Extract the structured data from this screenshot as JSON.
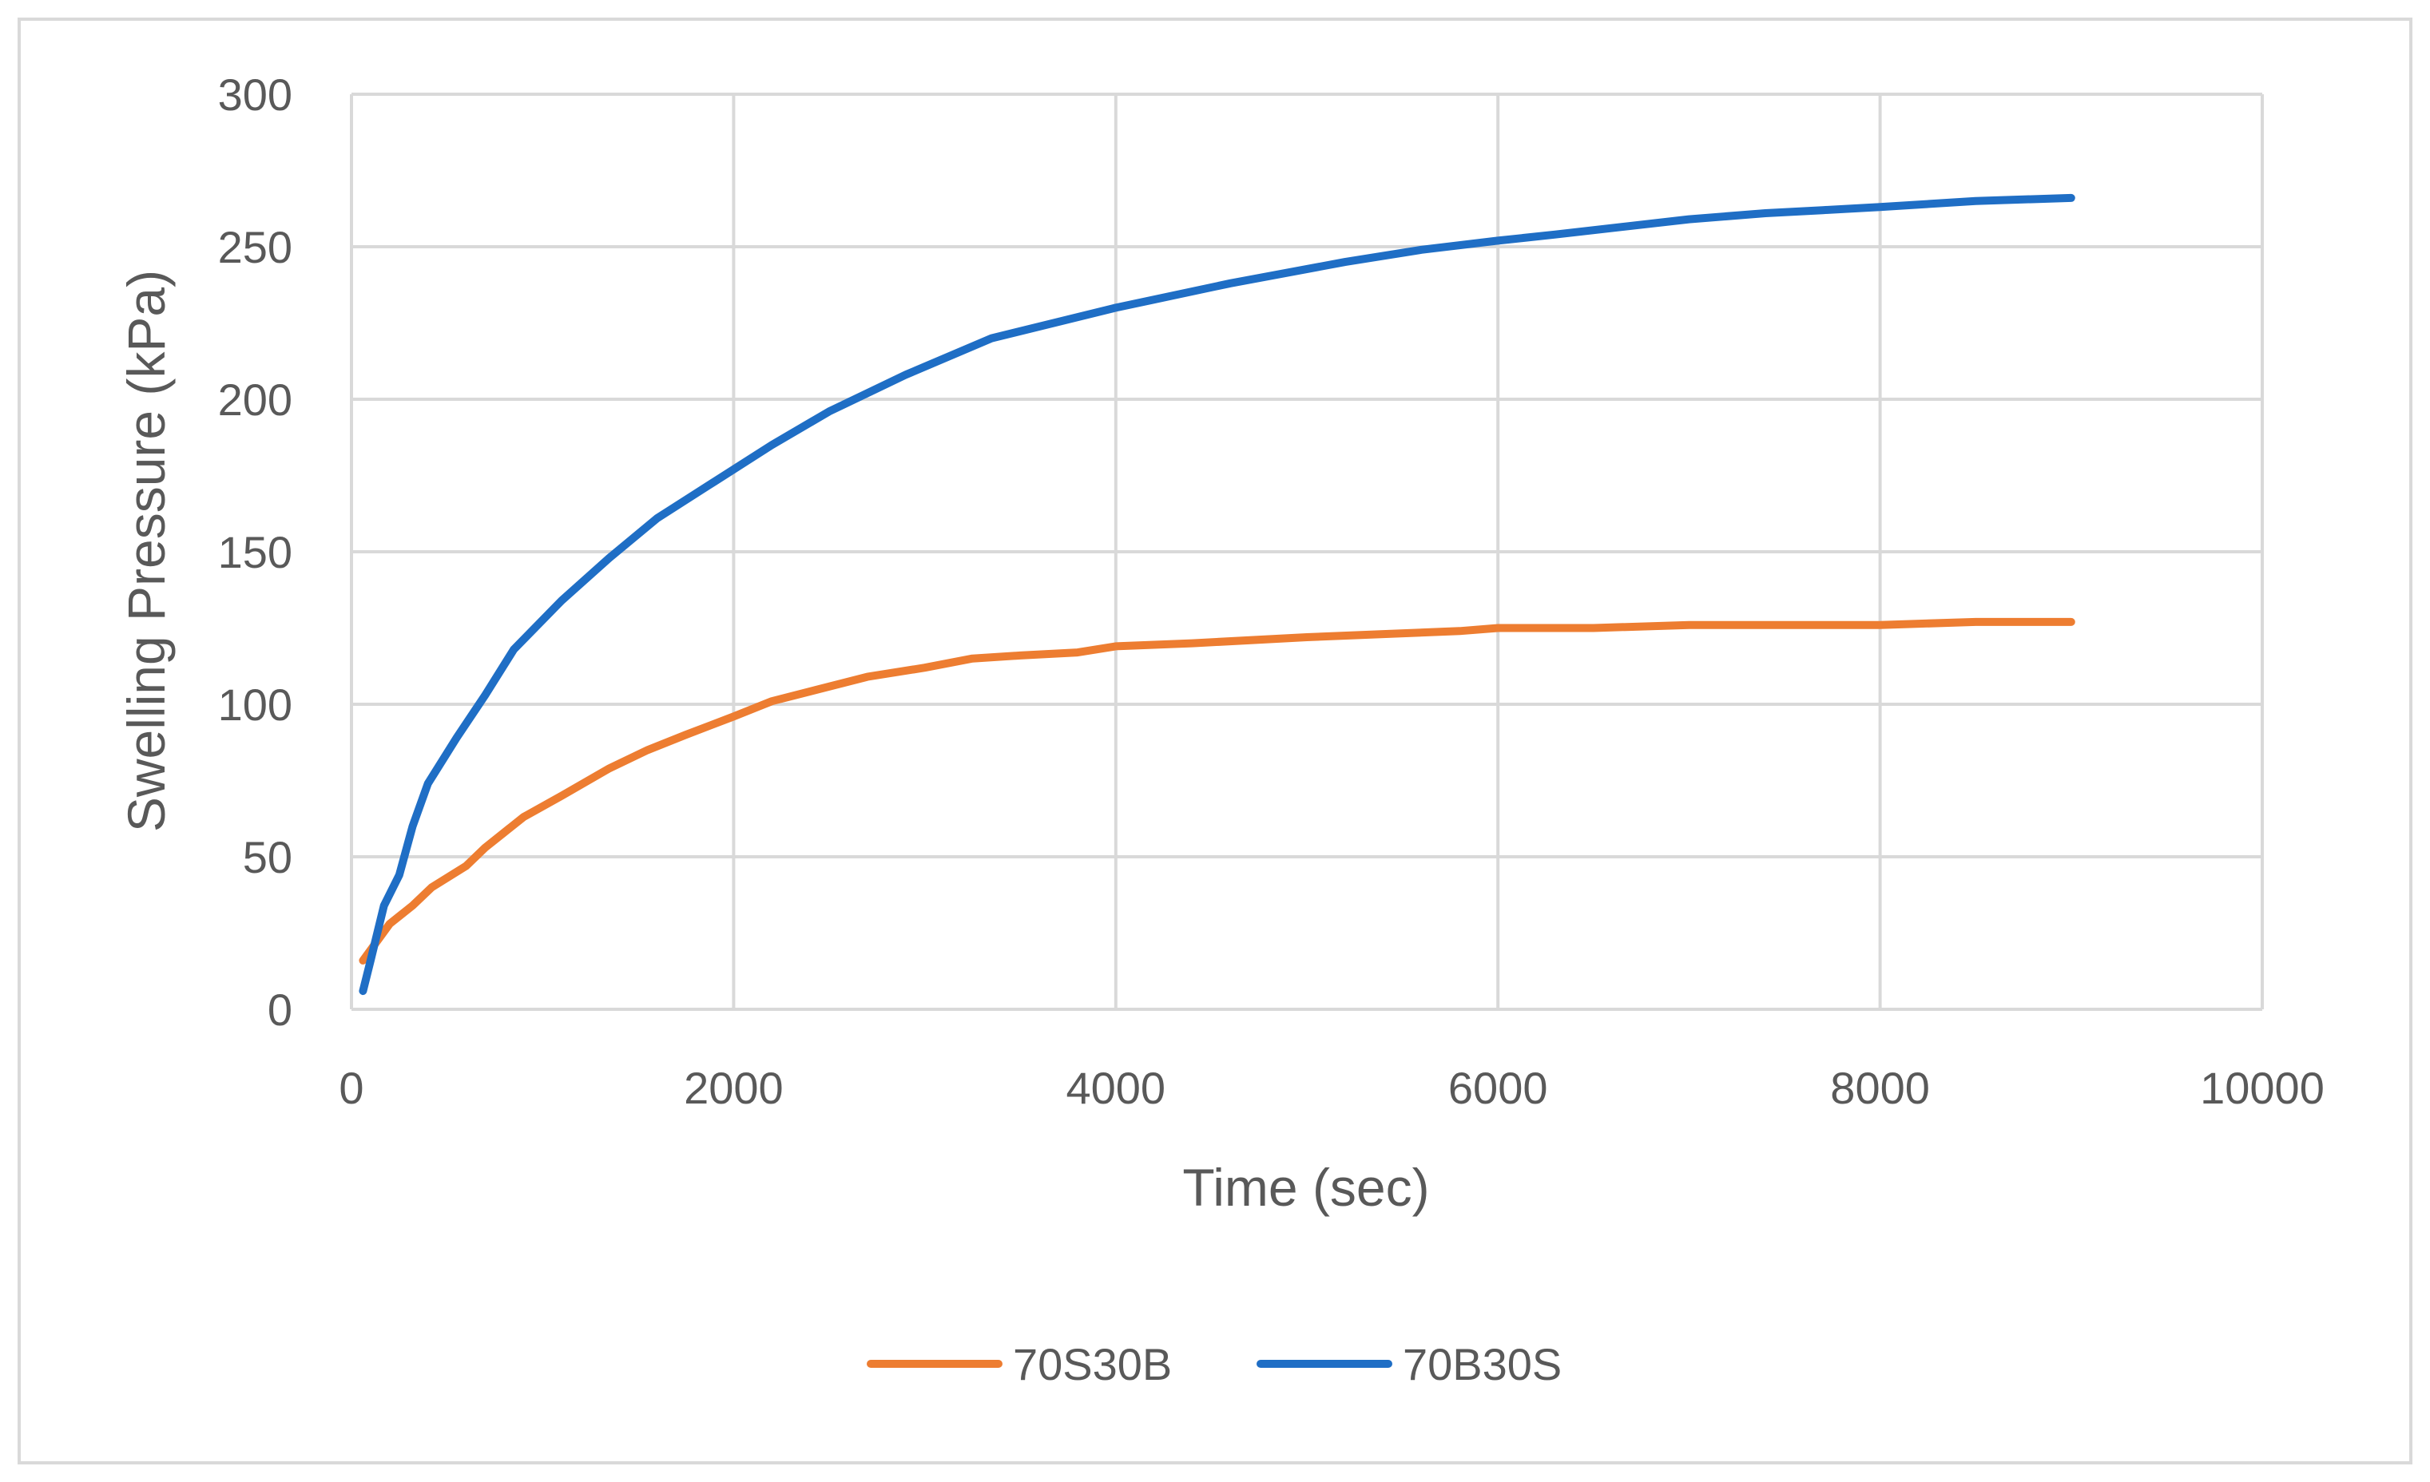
{
  "chart_data": {
    "type": "line",
    "title": "",
    "xlabel": "Time (sec)",
    "ylabel": "Swelling Pressure (kPa)",
    "xlim": [
      0,
      10000
    ],
    "ylim": [
      0,
      300
    ],
    "xticks": [
      0,
      2000,
      4000,
      6000,
      8000,
      10000
    ],
    "yticks": [
      0,
      50,
      100,
      150,
      200,
      250,
      300
    ],
    "xtick_labels": [
      "0",
      "2000",
      "4000",
      "6000",
      "8000",
      "10000"
    ],
    "ytick_labels": [
      "0",
      "50",
      "100",
      "150",
      "200",
      "250",
      "300"
    ],
    "grid": true,
    "legend_position": "bottom",
    "series": [
      {
        "name": "70S30B",
        "color": "#ED7D31",
        "x": [
          60,
          200,
          320,
          420,
          600,
          700,
          900,
          1100,
          1350,
          1550,
          1750,
          2000,
          2200,
          2450,
          2700,
          3000,
          3250,
          3500,
          3800,
          4000,
          4400,
          5000,
          5400,
          5800,
          6000,
          6500,
          7000,
          7500,
          8000,
          8500,
          9000
        ],
        "y": [
          16,
          28,
          34,
          40,
          47,
          53,
          63,
          70,
          79,
          85,
          90,
          96,
          101,
          105,
          109,
          112,
          115,
          116,
          117,
          119,
          120,
          122,
          123,
          124,
          125,
          125,
          126,
          126,
          126,
          127,
          127
        ]
      },
      {
        "name": "70B30S",
        "color": "#1F6EC5",
        "x": [
          60,
          100,
          170,
          250,
          320,
          400,
          550,
          700,
          850,
          1100,
          1350,
          1600,
          1900,
          2200,
          2500,
          2900,
          3350,
          4000,
          4600,
          5200,
          5600,
          6000,
          6300,
          7000,
          7400,
          7700,
          8000,
          8500,
          9000
        ],
        "y": [
          6,
          16,
          34,
          44,
          60,
          74,
          89,
          103,
          118,
          134,
          148,
          161,
          173,
          185,
          196,
          208,
          220,
          230,
          238,
          245,
          249,
          252,
          254,
          259,
          261,
          262,
          263,
          265,
          266
        ]
      }
    ]
  }
}
